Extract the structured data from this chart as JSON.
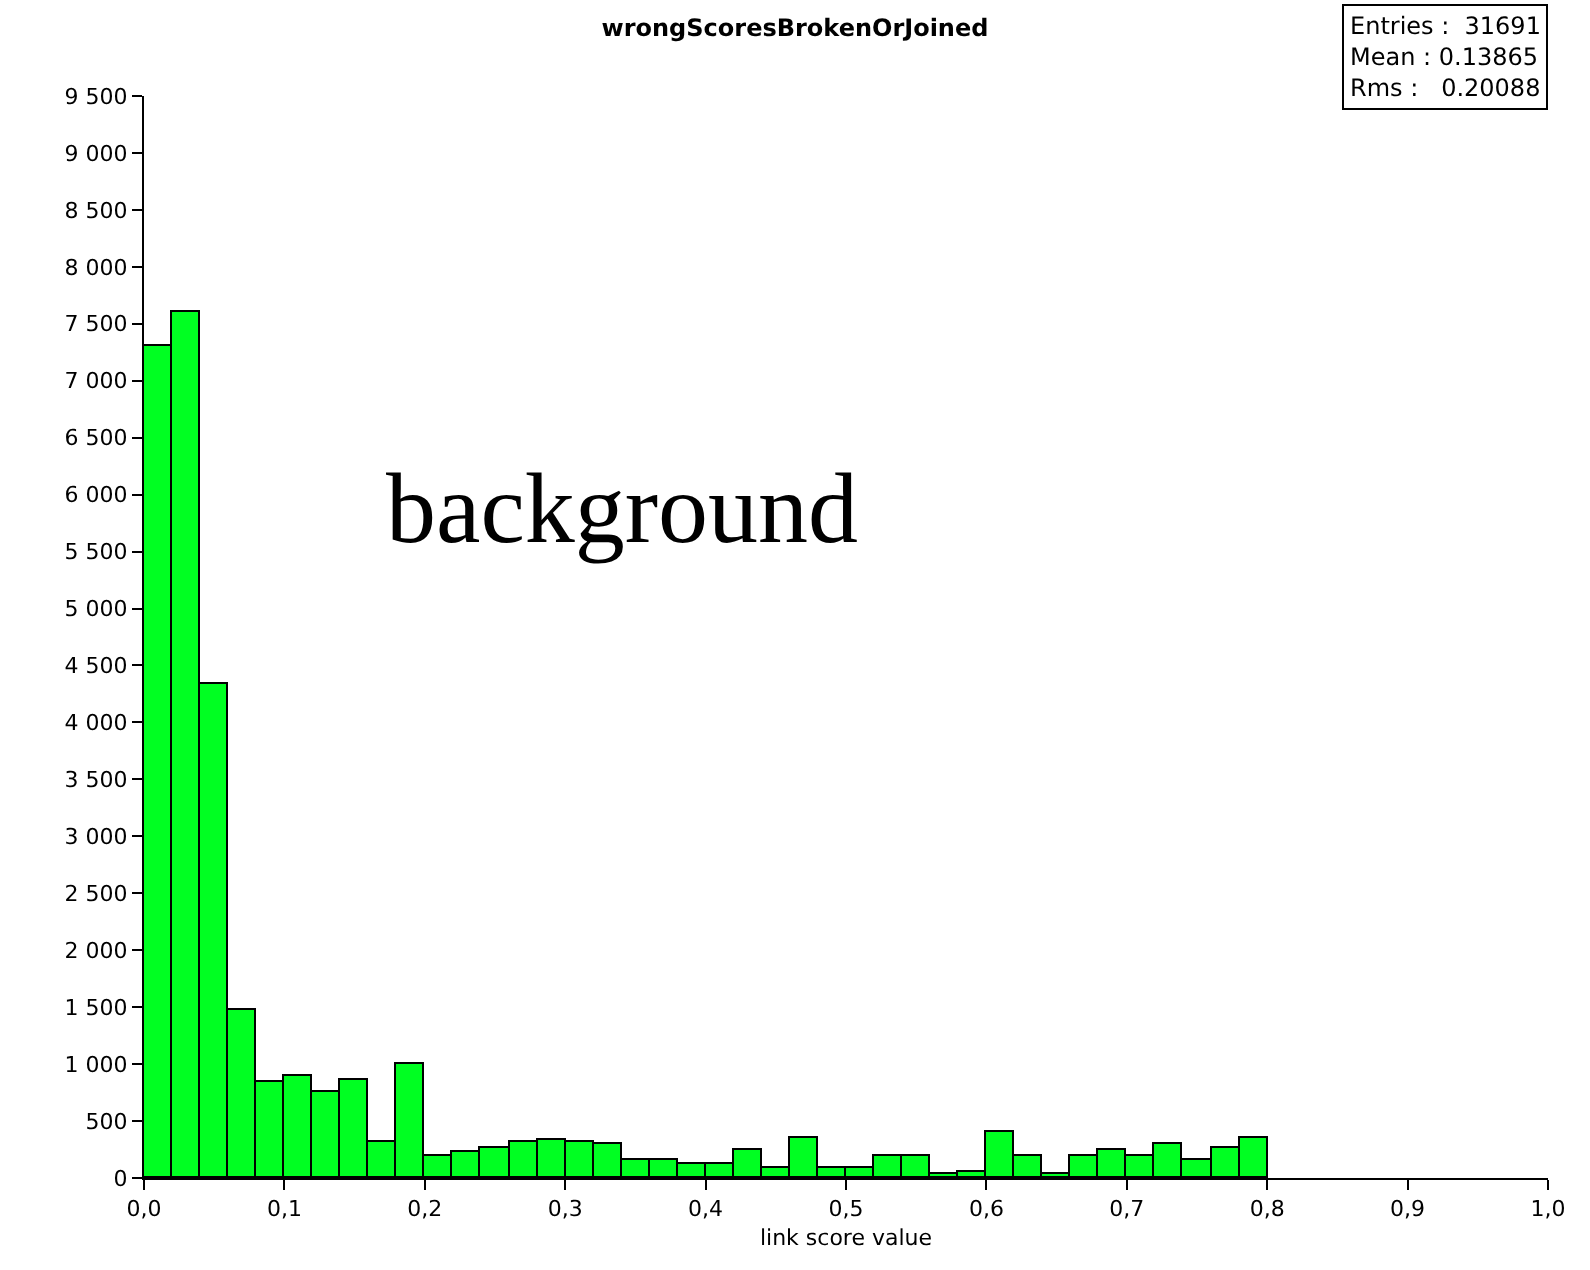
{
  "chart_data": {
    "type": "histogram",
    "title": "wrongScoresBrokenOrJoined",
    "xlabel": "link score value",
    "bins": [
      0,
      0.02,
      0.04,
      0.06,
      0.08,
      0.1,
      0.12,
      0.14,
      0.16,
      0.18,
      0.2,
      0.22,
      0.24,
      0.26,
      0.28,
      0.3,
      0.32,
      0.34,
      0.36,
      0.38,
      0.4,
      0.42,
      0.44,
      0.46,
      0.48,
      0.5,
      0.52,
      0.54,
      0.56,
      0.58,
      0.6,
      0.62,
      0.64,
      0.66,
      0.68,
      0.7,
      0.72,
      0.74,
      0.76,
      0.78,
      0.8
    ],
    "values": [
      7300,
      7600,
      4330,
      1470,
      840,
      900,
      760,
      860,
      320,
      1000,
      200,
      230,
      260,
      310,
      330,
      310,
      290,
      150,
      150,
      130,
      130,
      250,
      90,
      350,
      90,
      90,
      200,
      200,
      30,
      50,
      400,
      200,
      30,
      200,
      250,
      200,
      290,
      150,
      260,
      360
    ],
    "color": "#00ff22",
    "xlim": [
      0,
      1
    ],
    "xticks": [
      {
        "value": 0,
        "label": "0,0"
      },
      {
        "value": 0.1,
        "label": "0,1"
      },
      {
        "value": 0.2,
        "label": "0,2"
      },
      {
        "value": 0.3,
        "label": "0,3"
      },
      {
        "value": 0.4,
        "label": "0,4"
      },
      {
        "value": 0.5,
        "label": "0,5"
      },
      {
        "value": 0.6,
        "label": "0,6"
      },
      {
        "value": 0.7,
        "label": "0,7"
      },
      {
        "value": 0.8,
        "label": "0,8"
      },
      {
        "value": 0.9,
        "label": "0,9"
      },
      {
        "value": 1,
        "label": "1,0"
      }
    ],
    "ylim": [
      0,
      9500
    ],
    "yticks": [
      0,
      500,
      {
        "value": 1000,
        "label": "1 000"
      },
      {
        "value": 1500,
        "label": "1 500"
      },
      {
        "value": 2000,
        "label": "2 000"
      },
      {
        "value": 2500,
        "label": "2 500"
      },
      {
        "value": 3000,
        "label": "3 000"
      },
      {
        "value": 3500,
        "label": "3 500"
      },
      {
        "value": 4000,
        "label": "4 000"
      },
      {
        "value": 4500,
        "label": "4 500"
      },
      {
        "value": 5000,
        "label": "5 000"
      },
      {
        "value": 5500,
        "label": "5 500"
      },
      {
        "value": 6000,
        "label": "6 000"
      },
      {
        "value": 6500,
        "label": "6 500"
      },
      {
        "value": 7000,
        "label": "7 000"
      },
      {
        "value": 7500,
        "label": "7 500"
      },
      {
        "value": 8000,
        "label": "8 000"
      },
      {
        "value": 8500,
        "label": "8 500"
      },
      {
        "value": 9000,
        "label": "9 000"
      },
      {
        "value": 9500,
        "label": "9 500"
      }
    ],
    "annotations": [
      "background",
      "Entries :  31691",
      "Mean : 0.13865",
      "Rms :   0.20088"
    ],
    "grid": false
  }
}
